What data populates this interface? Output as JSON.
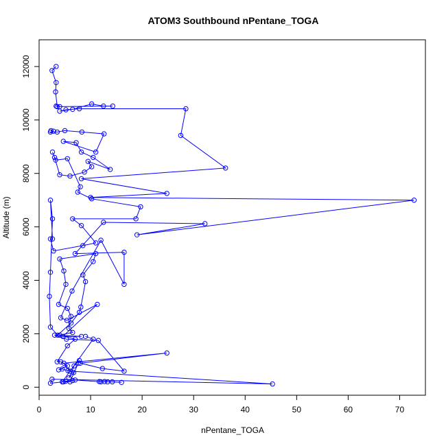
{
  "chart_data": {
    "type": "line",
    "title": "ATOM3 Southbound nPentane_TOGA",
    "xlabel": "nPentane_TOGA",
    "ylabel": "Altitude (m)",
    "xlim": [
      0,
      75
    ],
    "ylim": [
      -300,
      13000
    ],
    "xticks": [
      0,
      10,
      20,
      30,
      40,
      50,
      60,
      70
    ],
    "yticks": [
      0,
      2000,
      4000,
      6000,
      8000,
      10000,
      12000
    ],
    "grid": false,
    "legend": "none",
    "colors": {
      "series": "#0000ff"
    },
    "series": [
      {
        "points": [
          [
            3.3,
            12000
          ],
          [
            2.5,
            11850
          ],
          [
            3.3,
            11400
          ],
          [
            3.2,
            11050
          ],
          [
            3.5,
            10500
          ],
          [
            3.3,
            10520
          ],
          [
            4.0,
            10500
          ],
          [
            14.3,
            10520
          ],
          [
            12.5,
            10520
          ],
          [
            10.2,
            10600
          ],
          [
            6.5,
            10400
          ],
          [
            4.0,
            10330
          ],
          [
            5.2,
            10380
          ],
          [
            7.8,
            10420
          ],
          [
            28.5,
            10420
          ],
          [
            27.5,
            9420
          ],
          [
            36.2,
            8200
          ],
          [
            8.2,
            7800
          ],
          [
            24.8,
            7250
          ],
          [
            10.0,
            7100
          ],
          [
            72.8,
            7000
          ],
          [
            19.0,
            5700
          ],
          [
            32.2,
            6120
          ],
          [
            12.5,
            6170
          ],
          [
            7.0,
            5000
          ],
          [
            16.5,
            5050
          ],
          [
            16.5,
            3850
          ],
          [
            12.0,
            5500
          ],
          [
            6.4,
            3600
          ],
          [
            4.2,
            2600
          ],
          [
            5.4,
            2500
          ],
          [
            11.3,
            3100
          ],
          [
            4.6,
            1900
          ],
          [
            8.2,
            1900
          ],
          [
            3.0,
            1950
          ],
          [
            5.3,
            1800
          ],
          [
            11.5,
            1750
          ],
          [
            16.5,
            600
          ],
          [
            12.3,
            700
          ],
          [
            8.0,
            900
          ],
          [
            24.8,
            1280
          ],
          [
            4.8,
            900
          ],
          [
            6.0,
            600
          ],
          [
            45.3,
            120
          ],
          [
            2.5,
            300
          ],
          [
            2.2,
            150
          ],
          [
            4.7,
            200
          ],
          [
            5.1,
            220
          ],
          [
            6.5,
            250
          ],
          [
            7.0,
            270
          ],
          [
            12.0,
            200
          ],
          [
            11.7,
            210
          ],
          [
            13.3,
            200
          ],
          [
            14.2,
            200
          ],
          [
            16.0,
            180
          ],
          [
            12.7,
            210
          ]
        ]
      },
      {
        "points": [
          [
            2.3,
            9600
          ],
          [
            2.8,
            9580
          ],
          [
            2.2,
            9550
          ],
          [
            3.5,
            9550
          ],
          [
            5.0,
            9600
          ],
          [
            8.3,
            9550
          ],
          [
            12.6,
            9480
          ],
          [
            11.0,
            8800
          ],
          [
            4.7,
            9200
          ],
          [
            7.2,
            9150
          ],
          [
            8.2,
            8800
          ],
          [
            10.5,
            8600
          ],
          [
            13.8,
            8150
          ],
          [
            9.5,
            8450
          ],
          [
            10.2,
            8250
          ],
          [
            8.8,
            8050
          ],
          [
            6.0,
            7900
          ],
          [
            4.0,
            7950
          ],
          [
            3.0,
            8600
          ],
          [
            2.6,
            8800
          ],
          [
            3.2,
            8500
          ],
          [
            5.5,
            8550
          ],
          [
            8.0,
            7500
          ],
          [
            7.5,
            7300
          ],
          [
            10.2,
            7050
          ],
          [
            19.7,
            6750
          ],
          [
            18.8,
            6300
          ],
          [
            6.5,
            6300
          ],
          [
            8.2,
            6050
          ],
          [
            11.0,
            5400
          ],
          [
            8.5,
            5300
          ],
          [
            2.8,
            5100
          ],
          [
            2.2,
            5550
          ],
          [
            2.6,
            5550
          ],
          [
            2.2,
            7000
          ],
          [
            2.6,
            6300
          ],
          [
            2.2,
            4300
          ],
          [
            2.0,
            3400
          ],
          [
            2.2,
            2250
          ],
          [
            3.6,
            1950
          ],
          [
            6.2,
            2400
          ],
          [
            7.8,
            2800
          ],
          [
            8.1,
            3000
          ],
          [
            9.0,
            3950
          ],
          [
            8.5,
            4200
          ],
          [
            10.5,
            4700
          ],
          [
            11.0,
            5000
          ],
          [
            4.0,
            4800
          ],
          [
            4.8,
            4350
          ],
          [
            5.2,
            3850
          ],
          [
            3.8,
            3100
          ],
          [
            5.5,
            2950
          ],
          [
            6.2,
            2650
          ],
          [
            5.8,
            2200
          ],
          [
            6.5,
            2050
          ],
          [
            4.0,
            1950
          ],
          [
            7.0,
            1800
          ],
          [
            5.5,
            1550
          ],
          [
            3.5,
            950
          ],
          [
            4.2,
            950
          ],
          [
            5.5,
            800
          ],
          [
            3.8,
            650
          ],
          [
            4.5,
            680
          ],
          [
            5.6,
            620
          ],
          [
            6.7,
            550
          ],
          [
            5.8,
            350
          ],
          [
            6.8,
            800
          ],
          [
            7.8,
            1000
          ],
          [
            7.6,
            900
          ],
          [
            6.0,
            200
          ],
          [
            4.5,
            200
          ],
          [
            10.5,
            1800
          ],
          [
            9.0,
            1900
          ]
        ]
      }
    ]
  }
}
